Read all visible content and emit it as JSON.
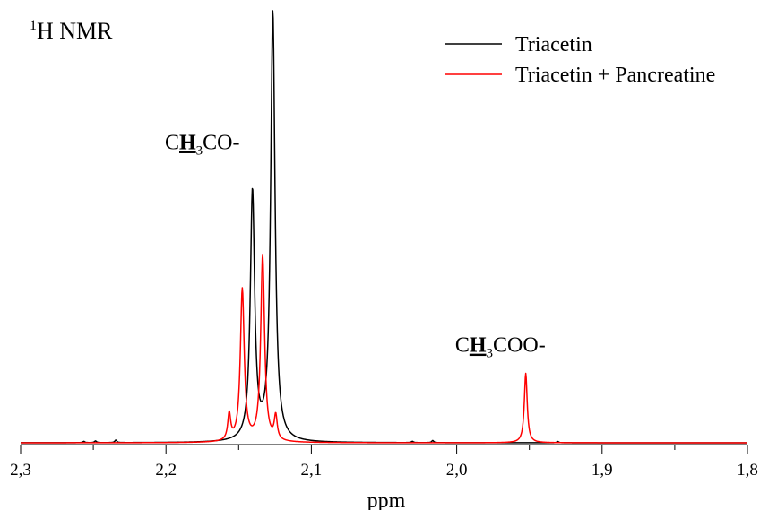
{
  "chart_data": {
    "type": "line",
    "title_sup": "1",
    "title": "H NMR",
    "xlabel": "ppm",
    "ylabel": "",
    "xlim": [
      2.3,
      1.8
    ],
    "x_reversed": true,
    "xticks": [
      {
        "value": 2.3,
        "label": "2,3"
      },
      {
        "value": 2.2,
        "label": "2,2"
      },
      {
        "value": 2.1,
        "label": "2,1"
      },
      {
        "value": 2.0,
        "label": "2,0"
      },
      {
        "value": 1.9,
        "label": "1,9"
      },
      {
        "value": 1.8,
        "label": "1,8"
      }
    ],
    "minor_tick_step": 0.05,
    "y_axis_visible": false,
    "ylim": [
      0,
      100
    ],
    "legend_position": "top-right",
    "series": [
      {
        "name": "Triacetin",
        "color": "#000000",
        "peaks": [
          {
            "x": 2.1265,
            "height": 100,
            "width": 0.0018
          },
          {
            "x": 2.1405,
            "height": 58,
            "width": 0.0018
          },
          {
            "x": 2.2345,
            "height": 0.6,
            "width": 0.0008
          },
          {
            "x": 2.2485,
            "height": 0.4,
            "width": 0.0008
          },
          {
            "x": 2.2565,
            "height": 0.3,
            "width": 0.0008
          },
          {
            "x": 2.0165,
            "height": 0.5,
            "width": 0.0008
          },
          {
            "x": 2.0305,
            "height": 0.3,
            "width": 0.0008
          },
          {
            "x": 1.9305,
            "height": 0.3,
            "width": 0.0008
          }
        ]
      },
      {
        "name": "Triacetin + Pancreatine",
        "color": "#ff0000",
        "peaks": [
          {
            "x": 2.1335,
            "height": 43.5,
            "width": 0.0016
          },
          {
            "x": 2.1475,
            "height": 35.5,
            "width": 0.0016
          },
          {
            "x": 2.1565,
            "height": 6.2,
            "width": 0.0012
          },
          {
            "x": 2.1245,
            "height": 5.6,
            "width": 0.0012
          },
          {
            "x": 1.9525,
            "height": 16.2,
            "width": 0.0012
          }
        ]
      }
    ],
    "annotations": [
      {
        "text_pre": "C",
        "text_bold": "H",
        "text_sub": "3",
        "text_post": "CO-",
        "x": 2.175,
        "y": 68.5
      },
      {
        "text_pre": "C",
        "text_bold": "H",
        "text_sub": "3",
        "text_post": "COO-",
        "x": 1.97,
        "y": 21.2
      }
    ]
  }
}
